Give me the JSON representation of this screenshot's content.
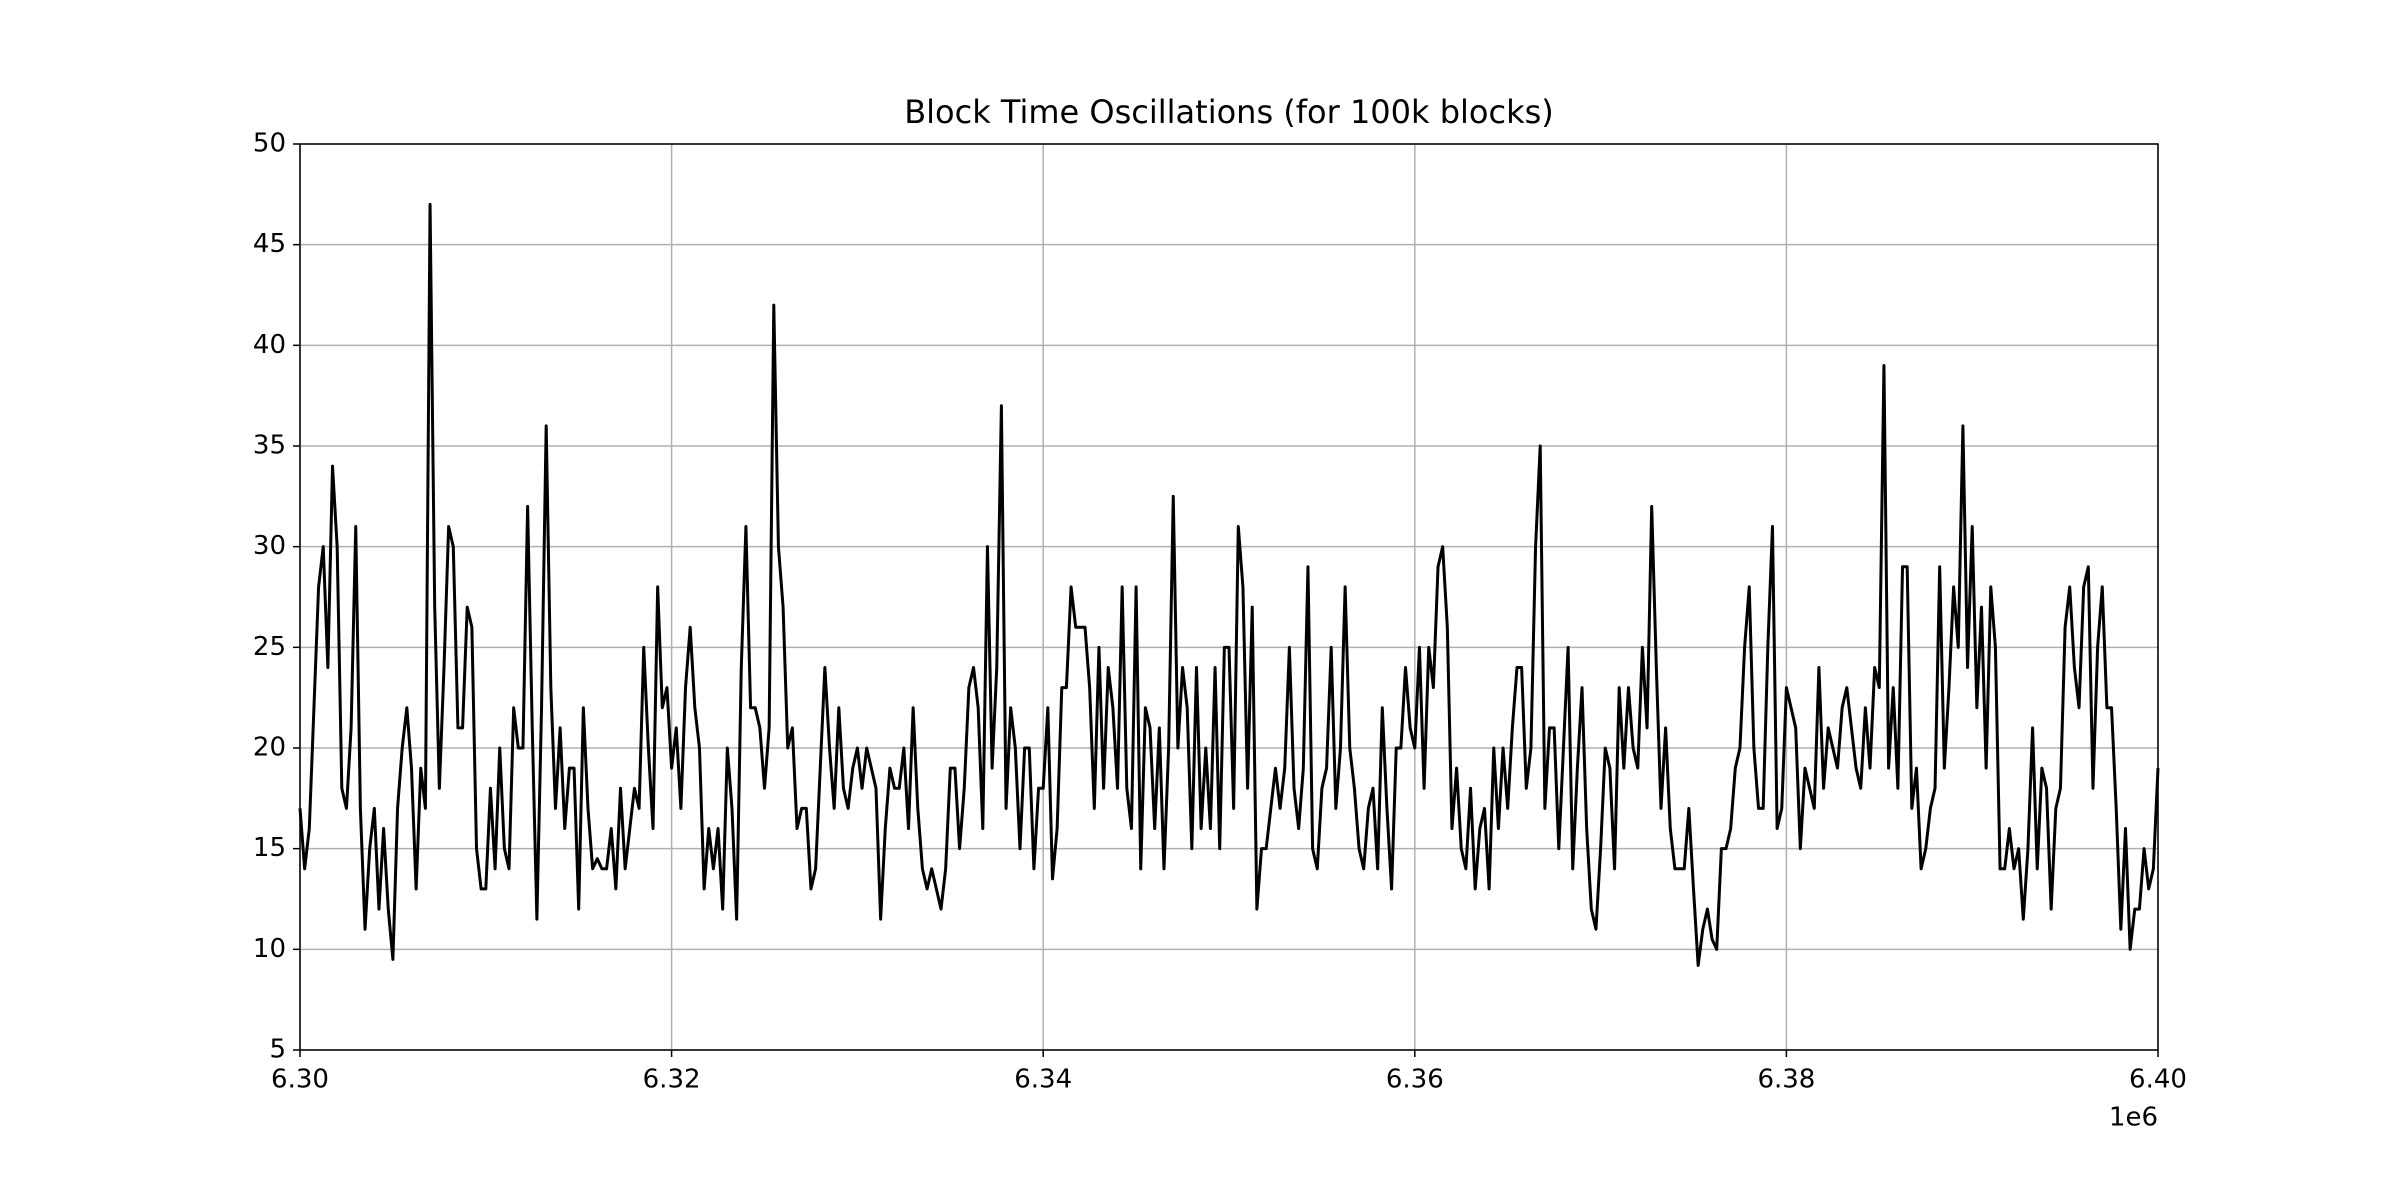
{
  "chart_data": {
    "type": "line",
    "title": "Block Time Oscillations (for 100k blocks)",
    "x": [
      6300000,
      6300250,
      6300500,
      6300750,
      6301000,
      6301250,
      6301500,
      6301750,
      6302000,
      6302250,
      6302500,
      6302750,
      6303000,
      6303250,
      6303500,
      6303750,
      6304000,
      6304250,
      6304500,
      6304750,
      6305000,
      6305250,
      6305500,
      6305750,
      6306000,
      6306250,
      6306500,
      6306750,
      6307000,
      6307250,
      6307500,
      6307750,
      6308000,
      6308250,
      6308500,
      6308750,
      6309000,
      6309250,
      6309500,
      6309750,
      6310000,
      6310250,
      6310500,
      6310750,
      6311000,
      6311250,
      6311500,
      6311750,
      6312000,
      6312250,
      6312500,
      6312750,
      6313000,
      6313250,
      6313500,
      6313750,
      6314000,
      6314250,
      6314500,
      6314750,
      6315000,
      6315250,
      6315500,
      6315750,
      6316000,
      6316250,
      6316500,
      6316750,
      6317000,
      6317250,
      6317500,
      6317750,
      6318000,
      6318250,
      6318500,
      6318750,
      6319000,
      6319250,
      6319500,
      6319750,
      6320000,
      6320250,
      6320500,
      6320750,
      6321000,
      6321250,
      6321500,
      6321750,
      6322000,
      6322250,
      6322500,
      6322750,
      6323000,
      6323250,
      6323500,
      6323750,
      6324000,
      6324250,
      6324500,
      6324750,
      6325000,
      6325250,
      6325500,
      6325750,
      6326000,
      6326250,
      6326500,
      6326750,
      6327000,
      6327250,
      6327500,
      6327750,
      6328000,
      6328250,
      6328500,
      6328750,
      6329000,
      6329250,
      6329500,
      6329750,
      6330000,
      6330250,
      6330500,
      6330750,
      6331000,
      6331250,
      6331500,
      6331750,
      6332000,
      6332250,
      6332500,
      6332750,
      6333000,
      6333250,
      6333500,
      6333750,
      6334000,
      6334250,
      6334500,
      6334750,
      6335000,
      6335250,
      6335500,
      6335750,
      6336000,
      6336250,
      6336500,
      6336750,
      6337000,
      6337250,
      6337500,
      6337750,
      6338000,
      6338250,
      6338500,
      6338750,
      6339000,
      6339250,
      6339500,
      6339750,
      6340000,
      6340250,
      6340500,
      6340750,
      6341000,
      6341250,
      6341500,
      6341750,
      6342000,
      6342250,
      6342500,
      6342750,
      6343000,
      6343250,
      6343500,
      6343750,
      6344000,
      6344250,
      6344500,
      6344750,
      6345000,
      6345250,
      6345500,
      6345750,
      6346000,
      6346250,
      6346500,
      6346750,
      6347000,
      6347250,
      6347500,
      6347750,
      6348000,
      6348250,
      6348500,
      6348750,
      6349000,
      6349250,
      6349500,
      6349750,
      6350000,
      6350250,
      6350500,
      6350750,
      6351000,
      6351250,
      6351500,
      6351750,
      6352000,
      6352250,
      6352500,
      6352750,
      6353000,
      6353250,
      6353500,
      6353750,
      6354000,
      6354250,
      6354500,
      6354750,
      6355000,
      6355250,
      6355500,
      6355750,
      6356000,
      6356250,
      6356500,
      6356750,
      6357000,
      6357250,
      6357500,
      6357750,
      6358000,
      6358250,
      6358500,
      6358750,
      6359000,
      6359250,
      6359500,
      6359750,
      6360000,
      6360250,
      6360500,
      6360750,
      6361000,
      6361250,
      6361500,
      6361750,
      6362000,
      6362250,
      6362500,
      6362750,
      6363000,
      6363250,
      6363500,
      6363750,
      6364000,
      6364250,
      6364500,
      6364750,
      6365000,
      6365250,
      6365500,
      6365750,
      6366000,
      6366250,
      6366500,
      6366750,
      6367000,
      6367250,
      6367500,
      6367750,
      6368000,
      6368250,
      6368500,
      6368750,
      6369000,
      6369250,
      6369500,
      6369750,
      6370000,
      6370250,
      6370500,
      6370750,
      6371000,
      6371250,
      6371500,
      6371750,
      6372000,
      6372250,
      6372500,
      6372750,
      6373000,
      6373250,
      6373500,
      6373750,
      6374000,
      6374250,
      6374500,
      6374750,
      6375000,
      6375250,
      6375500,
      6375750,
      6376000,
      6376250,
      6376500,
      6376750,
      6377000,
      6377250,
      6377500,
      6377750,
      6378000,
      6378250,
      6378500,
      6378750,
      6379000,
      6379250,
      6379500,
      6379750,
      6380000,
      6380250,
      6380500,
      6380750,
      6381000,
      6381250,
      6381500,
      6381750,
      6382000,
      6382250,
      6382500,
      6382750,
      6383000,
      6383250,
      6383500,
      6383750,
      6384000,
      6384250,
      6384500,
      6384750,
      6385000,
      6385250,
      6385500,
      6385750,
      6386000,
      6386250,
      6386500,
      6386750,
      6387000,
      6387250,
      6387500,
      6387750,
      6388000,
      6388250,
      6388500,
      6388750,
      6389000,
      6389250,
      6389500,
      6389750,
      6390000,
      6390250,
      6390500,
      6390750,
      6391000,
      6391250,
      6391500,
      6391750,
      6392000,
      6392250,
      6392500,
      6392750,
      6393000,
      6393250,
      6393500,
      6393750,
      6394000,
      6394250,
      6394500,
      6394750,
      6395000,
      6395250,
      6395500,
      6395750,
      6396000,
      6396250,
      6396500,
      6396750,
      6397000,
      6397250,
      6397500,
      6397750,
      6398000,
      6398250,
      6398500,
      6398750,
      6399000,
      6399250,
      6399500,
      6399750,
      6400000
    ],
    "values": [
      17,
      14,
      16,
      22,
      28,
      30,
      24,
      34,
      30,
      18,
      17,
      21,
      31,
      17,
      11,
      15,
      17,
      12,
      16,
      12,
      9.5,
      17,
      20,
      22,
      19,
      13,
      19,
      17,
      47,
      27,
      18,
      24,
      31,
      30,
      21,
      21,
      27,
      26,
      15,
      13,
      13,
      18,
      14,
      20,
      15,
      14,
      22,
      20,
      20,
      32,
      21,
      11.5,
      22,
      36,
      23,
      17,
      21,
      16,
      19,
      19,
      12,
      22,
      17,
      14,
      14.5,
      14,
      14,
      16,
      13,
      18,
      14,
      16,
      18,
      17,
      25,
      20,
      16,
      28,
      22,
      23,
      19,
      21,
      17,
      23,
      26,
      22,
      20,
      13,
      16,
      14,
      16,
      12,
      20,
      17,
      11.5,
      24,
      31,
      22,
      22,
      21,
      18,
      21,
      42,
      30,
      27,
      20,
      21,
      16,
      17,
      17,
      13,
      14,
      19,
      24,
      20,
      17,
      22,
      18,
      17,
      19,
      20,
      18,
      20,
      19,
      18,
      11.5,
      16,
      19,
      18,
      18,
      20,
      16,
      22,
      17,
      14,
      13,
      14,
      13,
      12,
      14,
      19,
      19,
      15,
      18,
      23,
      24,
      22,
      16,
      30,
      19,
      24,
      37,
      17,
      22,
      20,
      15,
      20,
      20,
      14,
      18,
      18,
      22,
      13.5,
      16,
      23,
      23,
      28,
      26,
      26,
      26,
      23,
      17,
      25,
      18,
      24,
      22,
      18,
      28,
      18,
      16,
      28,
      14,
      22,
      21,
      16,
      21,
      14,
      20,
      32.5,
      20,
      24,
      22,
      15,
      24,
      16,
      20,
      16,
      24,
      15,
      25,
      25,
      17,
      31,
      28,
      18,
      27,
      12,
      15,
      15,
      17,
      19,
      17,
      19,
      25,
      18,
      16,
      19,
      29,
      15,
      14,
      18,
      19,
      25,
      17,
      20,
      28,
      20,
      18,
      15,
      14,
      17,
      18,
      14,
      22,
      17,
      13,
      20,
      20,
      24,
      21,
      20,
      25,
      18,
      25,
      23,
      29,
      30,
      26,
      16,
      19,
      15,
      14,
      18,
      13,
      16,
      17,
      13,
      20,
      16,
      20,
      17,
      21,
      24,
      24,
      18,
      20,
      30,
      35,
      17,
      21,
      21,
      15,
      20,
      25,
      14,
      19,
      23,
      16,
      12,
      11,
      15,
      20,
      19,
      14,
      23,
      19,
      23,
      20,
      19,
      25,
      21,
      32,
      24,
      17,
      21,
      16,
      14,
      14,
      14,
      17,
      13,
      9.2,
      11,
      12,
      10.5,
      10,
      15,
      15,
      16,
      19,
      20,
      25,
      28,
      20,
      17,
      17,
      25,
      31,
      16,
      17,
      23,
      22,
      21,
      15,
      19,
      18,
      17,
      24,
      18,
      21,
      20,
      19,
      22,
      23,
      21,
      19,
      18,
      22,
      19,
      24,
      23,
      39,
      19,
      23,
      18,
      29,
      29,
      17,
      19,
      14,
      15,
      17,
      18,
      29,
      19,
      23,
      28,
      25,
      36,
      24,
      31,
      22,
      27,
      19,
      28,
      25,
      14,
      14,
      16,
      14,
      15,
      11.5,
      15,
      21,
      14,
      19,
      18,
      12,
      17,
      18,
      26,
      28,
      24,
      22,
      28,
      29,
      18,
      25,
      28,
      22,
      22,
      17,
      11,
      16,
      10,
      12,
      12,
      15,
      13,
      14,
      19
    ],
    "color": "#000000",
    "xlim": [
      6300000,
      6400000
    ],
    "xticks": [
      {
        "value": 6300000,
        "label": "6.30"
      },
      {
        "value": 6320000,
        "label": "6.32"
      },
      {
        "value": 6340000,
        "label": "6.34"
      },
      {
        "value": 6360000,
        "label": "6.36"
      },
      {
        "value": 6380000,
        "label": "6.38"
      },
      {
        "value": 6400000,
        "label": "6.40"
      }
    ],
    "x_offset_label": "1e6",
    "ylim": [
      5,
      50
    ],
    "yticks": [
      5,
      10,
      15,
      20,
      25,
      30,
      35,
      40,
      45,
      50
    ],
    "grid": true
  }
}
